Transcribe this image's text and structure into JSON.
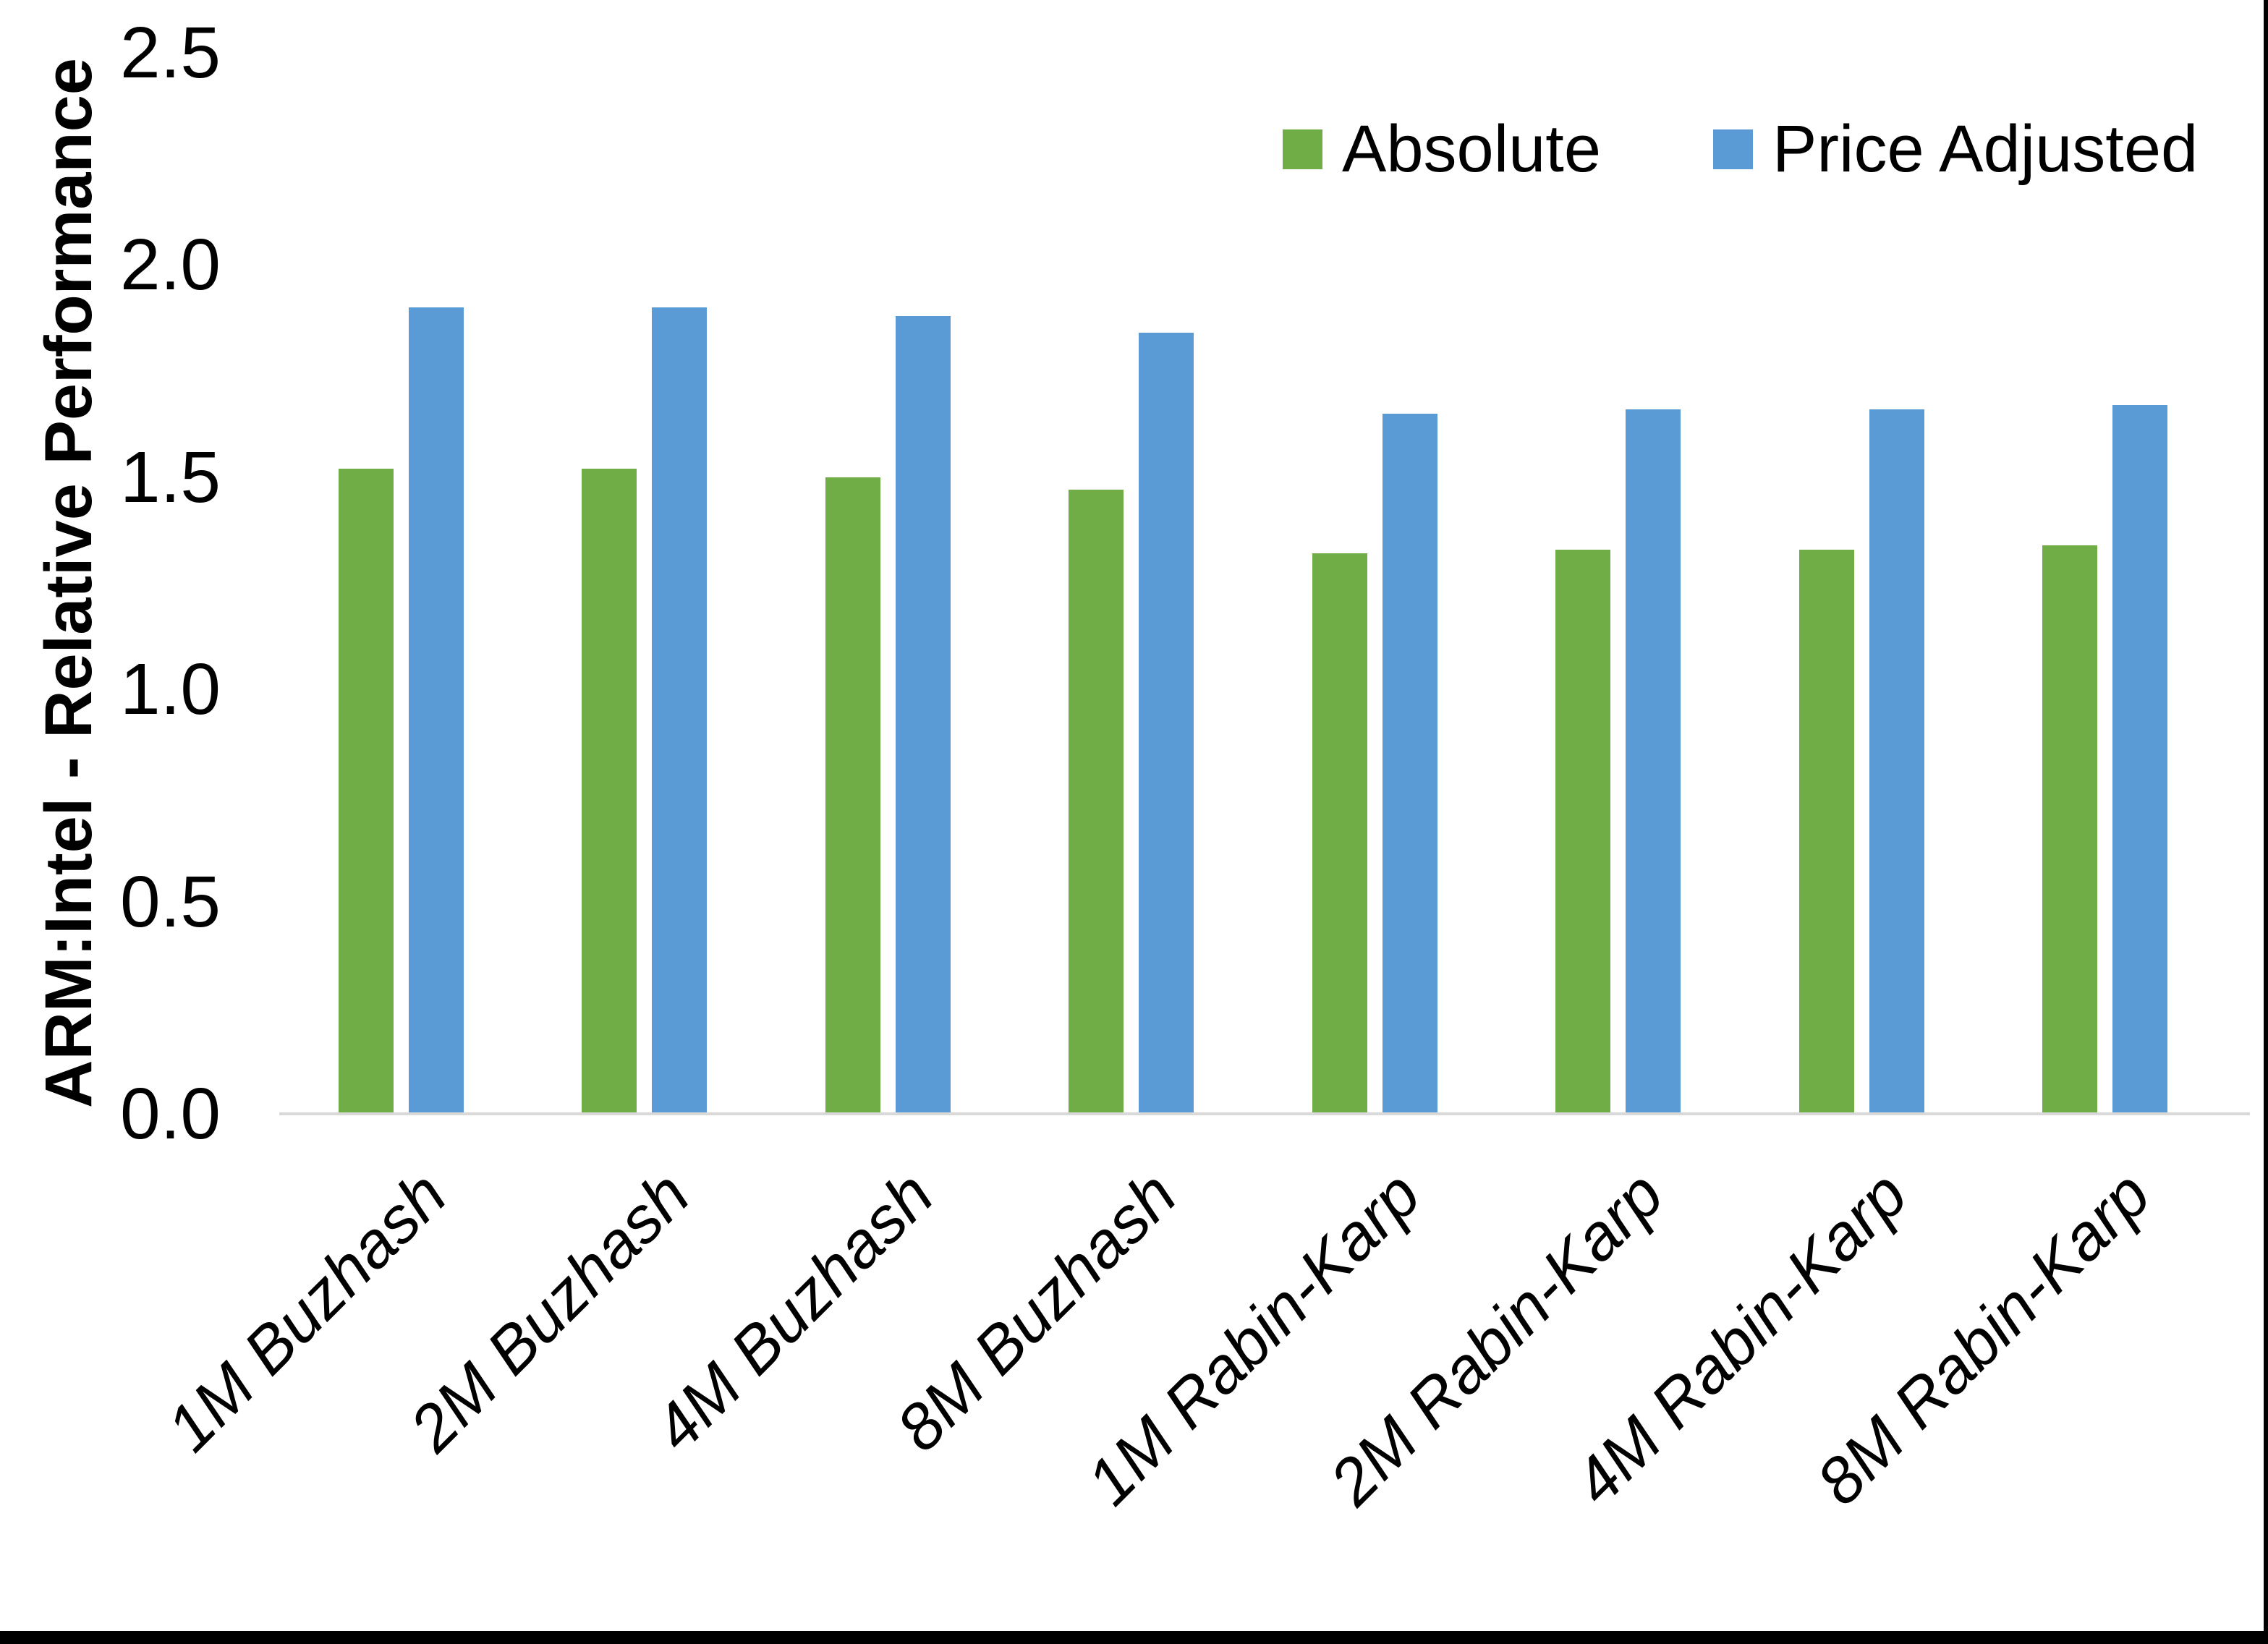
{
  "page": {
    "background": "#FFFFFF",
    "border_color": "#000000"
  },
  "chart_data": {
    "type": "bar",
    "title": "",
    "xlabel": "",
    "ylabel": "ARM:Intel - Relative Performance",
    "ylim": [
      0,
      2.5
    ],
    "ytick_step": 0.5,
    "yticks": [
      "2.5",
      "2.0",
      "1.5",
      "1.0",
      "0.5",
      "0.0"
    ],
    "grid": false,
    "legend_position": "top-right",
    "axis_line_color": "#D9D9D9",
    "categories": [
      "1M Buzhash",
      "2M Buzhash",
      "4M Buzhash",
      "8M Buzhash",
      "1M Rabin-Karp",
      "2M Rabin-Karp",
      "4M Rabin-Karp",
      "8M Rabin-Karp"
    ],
    "series": [
      {
        "name": "Absolute",
        "color": "#70AD47",
        "values": [
          1.52,
          1.52,
          1.5,
          1.47,
          1.32,
          1.33,
          1.33,
          1.34
        ]
      },
      {
        "name": "Price Adjusted",
        "color": "#5B9BD5",
        "values": [
          1.9,
          1.9,
          1.88,
          1.84,
          1.65,
          1.66,
          1.66,
          1.67
        ]
      }
    ]
  }
}
